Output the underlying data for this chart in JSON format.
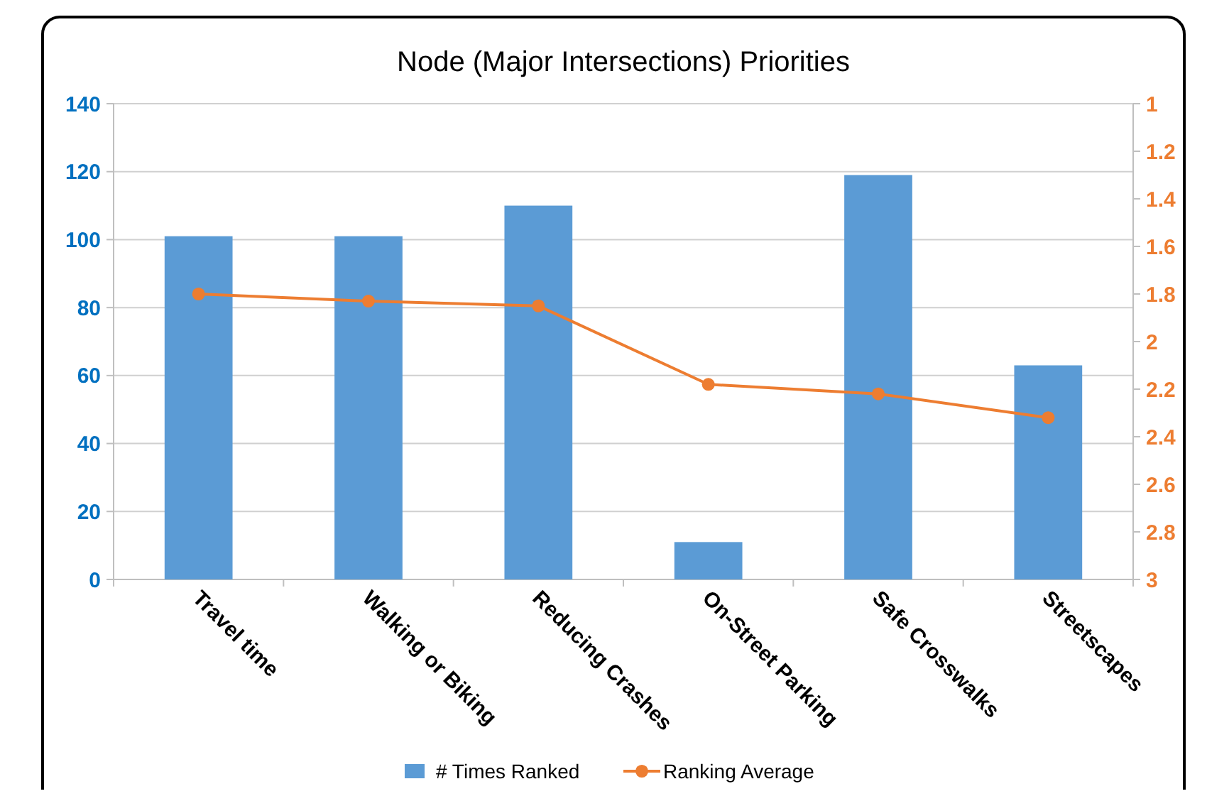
{
  "chart_data": {
    "type": "bar",
    "title": "Node (Major Intersections) Priorities",
    "categories": [
      "Travel time",
      "Walking or Biking",
      "Reducing Crashes",
      "On-Street Parking",
      "Safe Crosswalks",
      "Streetscapes"
    ],
    "series": [
      {
        "name": "# Times Ranked",
        "color": "#5b9bd5",
        "values": [
          101,
          101,
          110,
          11,
          119,
          63
        ]
      },
      {
        "name": "Ranking Average",
        "type": "line",
        "axis": "y2",
        "color": "#ed7d31",
        "values": [
          1.8,
          1.83,
          1.85,
          2.18,
          2.22,
          2.32
        ]
      }
    ],
    "ylim": [
      0,
      140
    ],
    "yticks": [
      0,
      20,
      40,
      60,
      80,
      100,
      120,
      140
    ],
    "y2lim": [
      3,
      1
    ],
    "y2ticks": [
      1,
      1.2,
      1.4,
      1.6,
      1.8,
      2,
      2.2,
      2.4,
      2.6,
      2.8,
      3
    ],
    "grid": "y",
    "legend": "bottom",
    "marker": "circle",
    "line_style": "solid"
  }
}
